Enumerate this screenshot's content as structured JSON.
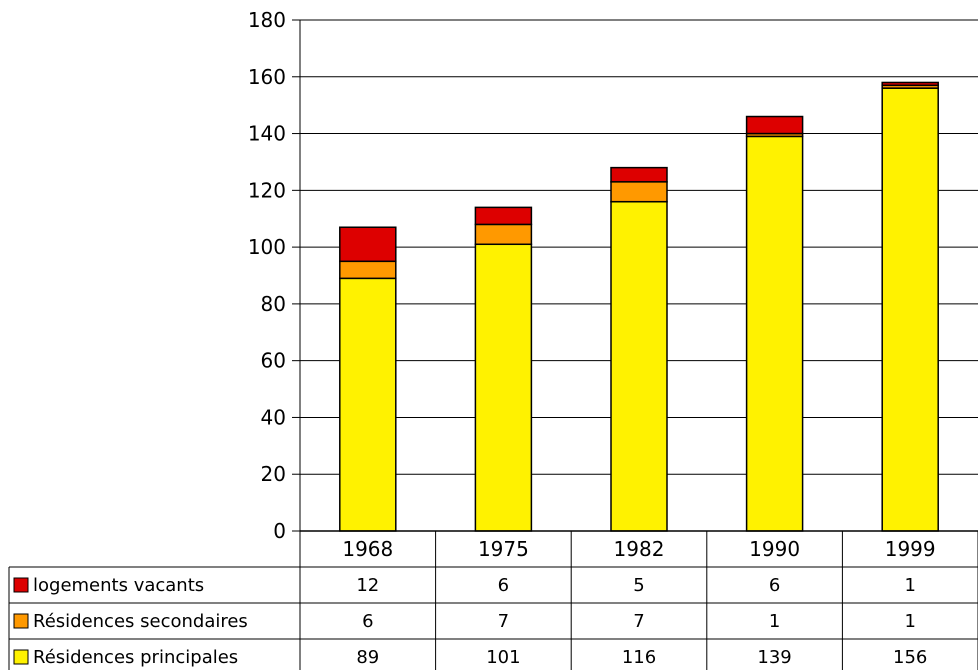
{
  "chart_data": {
    "type": "bar",
    "stacked": true,
    "title": "",
    "xlabel": "",
    "ylabel": "",
    "ylim": [
      0,
      180
    ],
    "yticks": [
      0,
      20,
      40,
      60,
      80,
      100,
      120,
      140,
      160,
      180
    ],
    "grid": true,
    "legend": "data-table-left",
    "categories": [
      "1968",
      "1975",
      "1982",
      "1990",
      "1999"
    ],
    "series": [
      {
        "name": "Résidences principales",
        "color": "#FFF200",
        "values": [
          89,
          101,
          116,
          139,
          156
        ]
      },
      {
        "name": "Résidences secondaires",
        "color": "#FF9900",
        "values": [
          6,
          7,
          7,
          1,
          1
        ]
      },
      {
        "name": "logements vacants",
        "color": "#DD0000",
        "values": [
          12,
          6,
          5,
          6,
          1
        ]
      }
    ],
    "table_row_order": [
      "logements vacants",
      "Résidences secondaires",
      "Résidences principales"
    ]
  }
}
